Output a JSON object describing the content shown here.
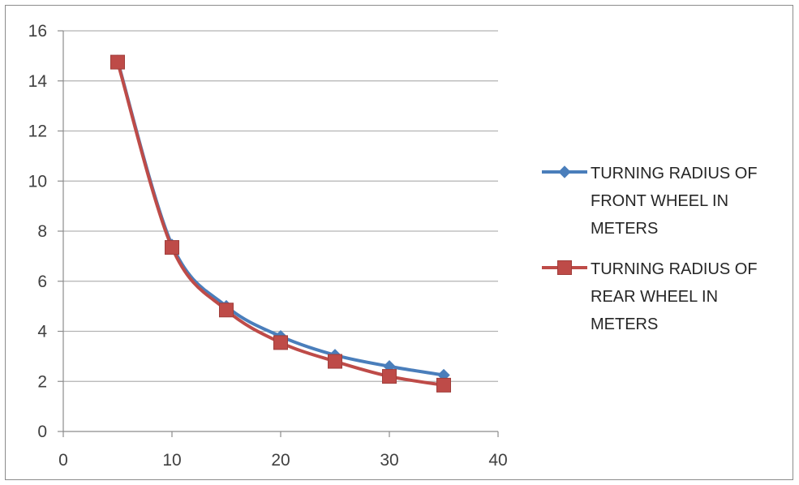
{
  "chart_data": {
    "type": "line",
    "title": "",
    "xlabel": "",
    "ylabel": "",
    "xlim": [
      0,
      40
    ],
    "ylim": [
      0,
      16
    ],
    "xticks": [
      0,
      10,
      20,
      30,
      40
    ],
    "yticks": [
      0,
      2,
      4,
      6,
      8,
      10,
      12,
      14,
      16
    ],
    "grid": "horizontal",
    "legend_position": "right",
    "series": [
      {
        "name": "TURNING RADIUS OF FRONT WHEEL IN METERS",
        "legend_lines": [
          "TURNING RADIUS OF",
          "FRONT WHEEL IN",
          "METERS"
        ],
        "color": "#4a7ebb",
        "marker": "diamond",
        "x": [
          5,
          10,
          15,
          20,
          25,
          30,
          35
        ],
        "y": [
          14.8,
          7.45,
          5.0,
          3.8,
          3.05,
          2.6,
          2.25
        ]
      },
      {
        "name": "TURNING RADIUS OF REAR WHEEL IN METERS",
        "legend_lines": [
          "TURNING RADIUS OF",
          "REAR WHEEL IN",
          "METERS"
        ],
        "color": "#be4b48",
        "marker": "square",
        "x": [
          5,
          10,
          15,
          20,
          25,
          30,
          35
        ],
        "y": [
          14.75,
          7.35,
          4.85,
          3.55,
          2.8,
          2.2,
          1.85
        ]
      }
    ]
  }
}
